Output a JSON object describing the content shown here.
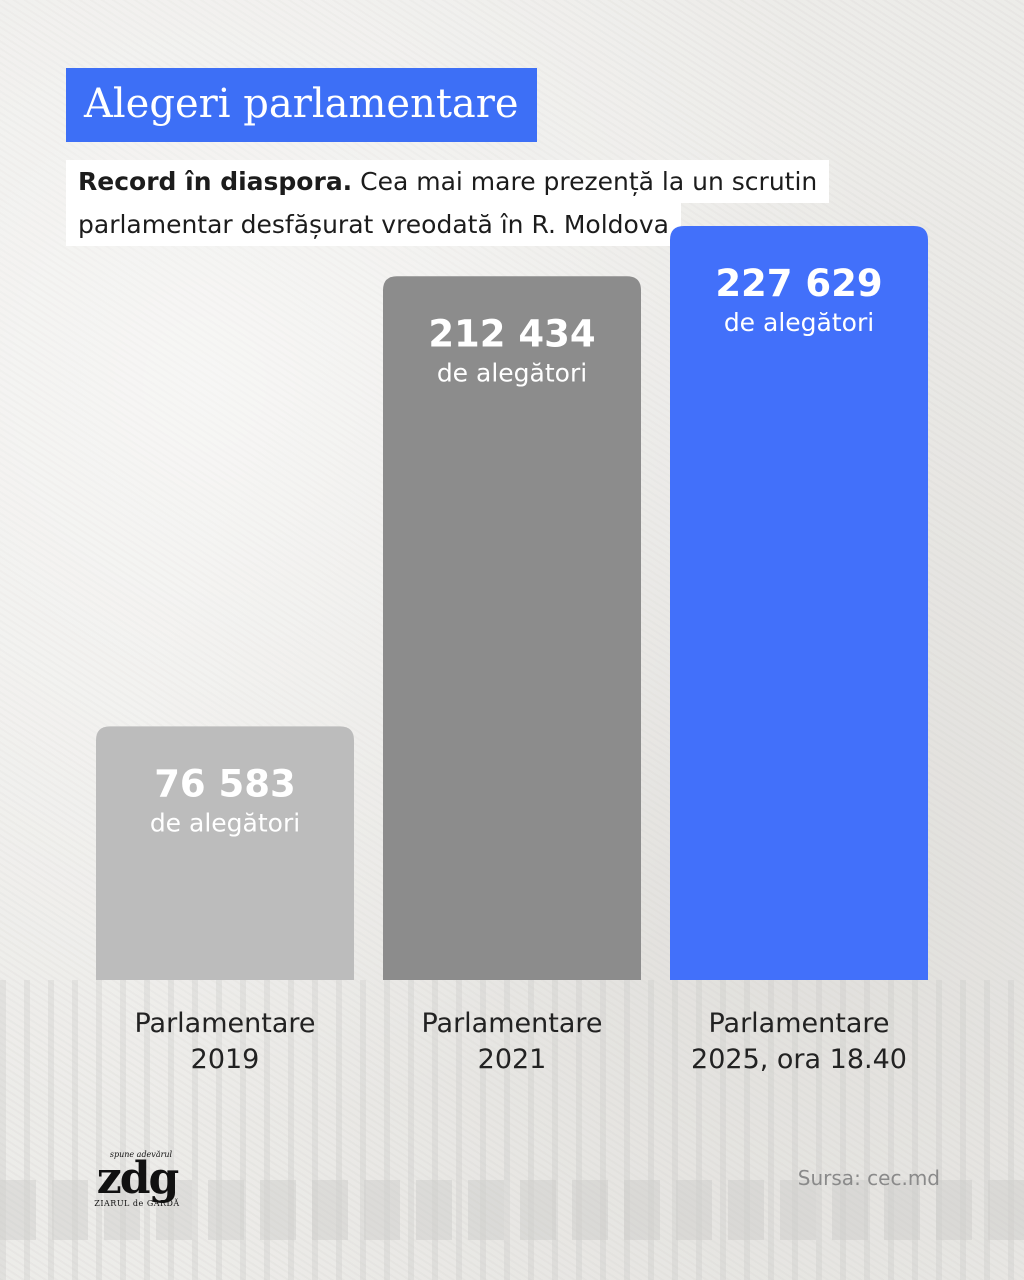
{
  "header": {
    "title": "Alegeri parlamentare",
    "subtitle_bold": "Record în diaspora.",
    "subtitle_line1": "Cea mai mare prezență la un scrutin",
    "subtitle_line2": "parlamentar desfășurat vreodată în R. Moldova"
  },
  "chart_data": {
    "type": "bar",
    "categories": [
      [
        "Parlamentare",
        "2019"
      ],
      [
        "Parlamentare",
        "2021"
      ],
      [
        "Parlamentare",
        "2025, ora 18.40"
      ]
    ],
    "values": [
      76583,
      212434,
      227629
    ],
    "value_labels": [
      "76 583",
      "212 434",
      "227 629"
    ],
    "unit_label": "de alegători",
    "bar_colors": [
      "#bcbcbc",
      "#8c8c8c",
      "#4270fa"
    ],
    "ylim": [
      0,
      240000
    ],
    "grid": false,
    "legend": false
  },
  "footer": {
    "logo_tagline": "spune adevărul",
    "logo_main": "zdg",
    "logo_sub": "ZIARUL de GARDĂ",
    "source": "Sursa: cec.md"
  }
}
